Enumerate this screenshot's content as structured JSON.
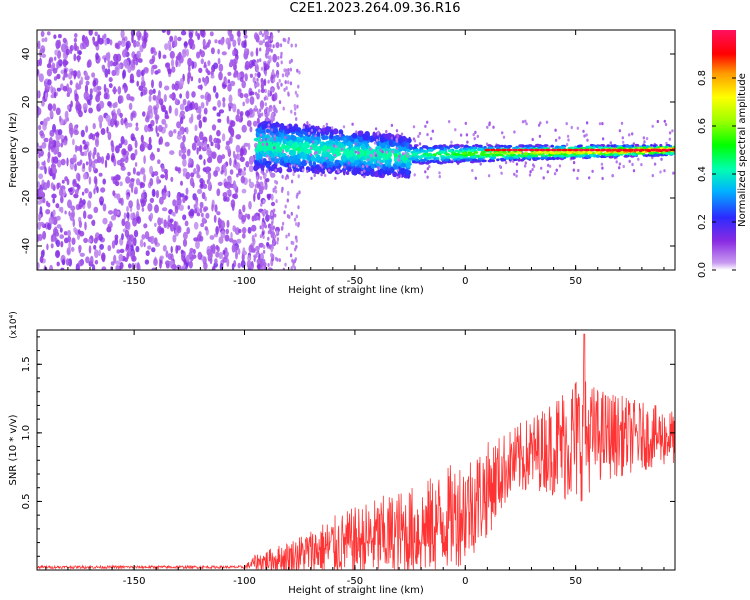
{
  "title": "C2E1.2023.264.09.36.R16",
  "chart_data": [
    {
      "type": "heatmap",
      "title": "C2E1.2023.264.09.36.R16",
      "xlabel": "Height of straight line (km)",
      "ylabel": "Frequency (Hz)",
      "xlim": [
        -194,
        95
      ],
      "ylim": [
        -50,
        50
      ],
      "x_ticks": [
        -150,
        -100,
        -50,
        0,
        50
      ],
      "y_ticks": [
        -40,
        -20,
        0,
        20,
        40
      ],
      "colorbar": {
        "label": "Normalized spectral amplitude",
        "range": [
          0.0,
          1.0
        ],
        "ticks": [
          "0.0",
          "0.2",
          "0.4",
          "0.6",
          "0.8"
        ],
        "colormap": "rainbow"
      },
      "regions": [
        {
          "x": [
            -194,
            -95
          ],
          "description_level": "scattered noise",
          "amplitude": 0.1
        },
        {
          "x": [
            -95,
            -25
          ],
          "freq_center": [
            2,
            -3
          ],
          "freq_halfwidth": [
            10,
            8
          ],
          "amplitude": 0.45
        },
        {
          "x": [
            -25,
            95
          ],
          "freq_center": [
            -2,
            0
          ],
          "freq_halfwidth": [
            4,
            2
          ],
          "amplitude": 0.9
        }
      ]
    },
    {
      "type": "line",
      "xlabel": "Height of straight line (km)",
      "ylabel": "SNR (10 * v/v)",
      "y_multiplier": "(x10⁴)",
      "xlim": [
        -194,
        95
      ],
      "ylim": [
        0,
        1.75
      ],
      "x_ticks": [
        -150,
        -100,
        -50,
        0,
        50
      ],
      "y_ticks": [
        "0.5",
        "1.0",
        "1.5"
      ],
      "series_color": "#ff3333",
      "envelope": [
        {
          "x": -194,
          "base": 0.02,
          "spread": 0.01
        },
        {
          "x": -100,
          "base": 0.02,
          "spread": 0.01
        },
        {
          "x": -95,
          "base": 0.05,
          "spread": 0.06
        },
        {
          "x": -80,
          "base": 0.08,
          "spread": 0.12
        },
        {
          "x": -60,
          "base": 0.15,
          "spread": 0.22
        },
        {
          "x": -40,
          "base": 0.2,
          "spread": 0.3
        },
        {
          "x": -20,
          "base": 0.25,
          "spread": 0.35
        },
        {
          "x": 0,
          "base": 0.4,
          "spread": 0.4
        },
        {
          "x": 10,
          "base": 0.55,
          "spread": 0.35
        },
        {
          "x": 20,
          "base": 0.75,
          "spread": 0.25
        },
        {
          "x": 35,
          "base": 0.85,
          "spread": 0.3
        },
        {
          "x": 50,
          "base": 0.9,
          "spread": 0.5
        },
        {
          "x": 60,
          "base": 0.95,
          "spread": 0.35
        },
        {
          "x": 80,
          "base": 0.95,
          "spread": 0.25
        },
        {
          "x": 95,
          "base": 0.95,
          "spread": 0.2
        }
      ],
      "peak": {
        "x": 54,
        "y": 1.72
      }
    }
  ]
}
